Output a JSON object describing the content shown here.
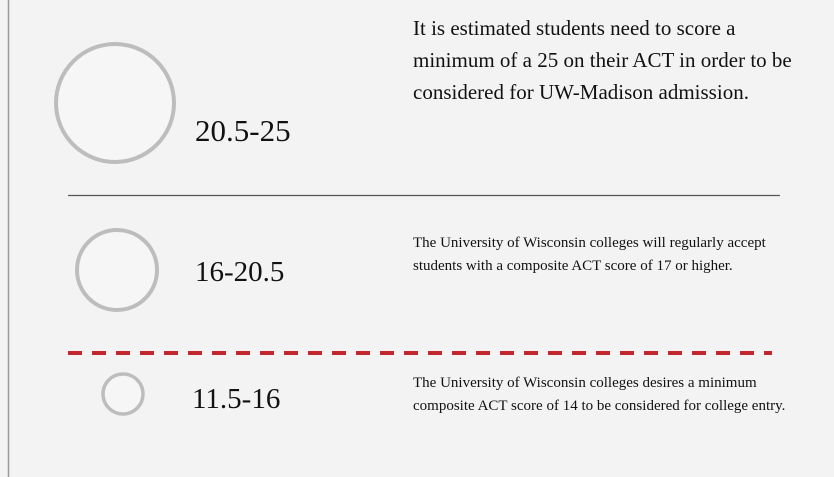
{
  "rows": [
    {
      "range": "20.5-25",
      "description": "It is estimated students need to score a minimum of a 25 on their ACT in order to be considered for UW-Madison admission."
    },
    {
      "range": "16-20.5",
      "description": "The University of Wisconsin colleges will regularly accept students with a composite ACT score of 17 or higher."
    },
    {
      "range": "11.5-16",
      "description": "The University of Wisconsin colleges desires a minimum composite ACT score of 14 to be considered for college entry."
    }
  ]
}
